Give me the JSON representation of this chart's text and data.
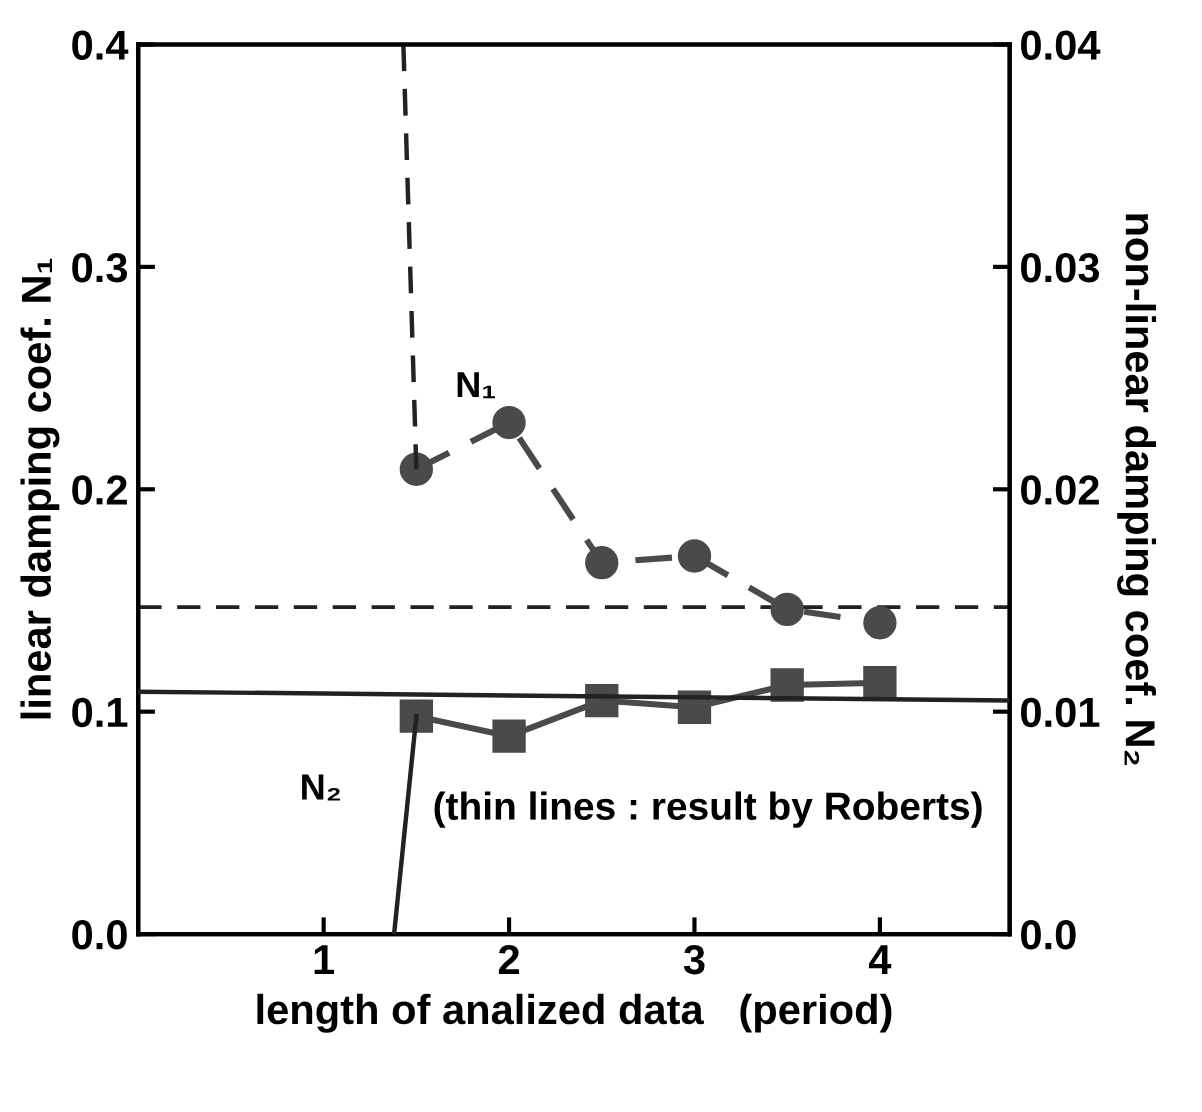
{
  "chart_data": {
    "type": "line",
    "xlabel": "length of analized data   (period)",
    "ylabel": "linear damping coef. N₁",
    "y2label": "non-linear damping coef. N₂",
    "xlim": [
      0,
      4.7
    ],
    "xticks": [
      1,
      2,
      3,
      4
    ],
    "ylim": [
      0,
      0.4
    ],
    "yticks": [
      {
        "value": 0,
        "label": "0.0"
      },
      0.1,
      0.2,
      0.3,
      0.4
    ],
    "y2lim": [
      0,
      0.04
    ],
    "y2ticks": [
      {
        "value": 0,
        "label": "0.0"
      },
      0.01,
      0.02,
      0.03,
      0.04
    ],
    "grid": false,
    "legend": false,
    "series": [
      {
        "name": "N₁",
        "axis": "y",
        "marker": "circle",
        "line_style": "dashed",
        "color": "#4a4a4a",
        "x": [
          1.5,
          2.0,
          2.5,
          3.0,
          3.5,
          4.0
        ],
        "values": [
          0.209,
          0.23,
          0.167,
          0.17,
          0.146,
          0.14
        ]
      },
      {
        "axis": "y",
        "marker": "none",
        "line_style": "dashed",
        "color": "#222222",
        "x": [
          1.43,
          1.5
        ],
        "values": [
          0.4,
          0.209
        ]
      },
      {
        "name": "N₂",
        "axis": "y2",
        "marker": "square",
        "line_style": "solid",
        "color": "#4a4a4a",
        "x": [
          1.5,
          2.0,
          2.5,
          3.0,
          3.5,
          4.0
        ],
        "values": [
          0.0098,
          0.0089,
          0.0105,
          0.0102,
          0.0112,
          0.0113
        ]
      },
      {
        "axis": "y2",
        "marker": "none",
        "line_style": "solid",
        "color": "#222222",
        "x": [
          1.38,
          1.5
        ],
        "values": [
          0.0,
          0.0098
        ]
      },
      {
        "axis": "y2",
        "marker": "none",
        "line_style": "solid",
        "color": "#222222",
        "x": [
          0,
          4.7
        ],
        "values": [
          0.0109,
          0.0105
        ]
      }
    ],
    "ref_lines": [
      {
        "axis": "y",
        "value": 0.147,
        "line_style": "dashed",
        "color": "#222222"
      }
    ],
    "annotations": [
      "(thin lines : result by Roberts)"
    ]
  }
}
